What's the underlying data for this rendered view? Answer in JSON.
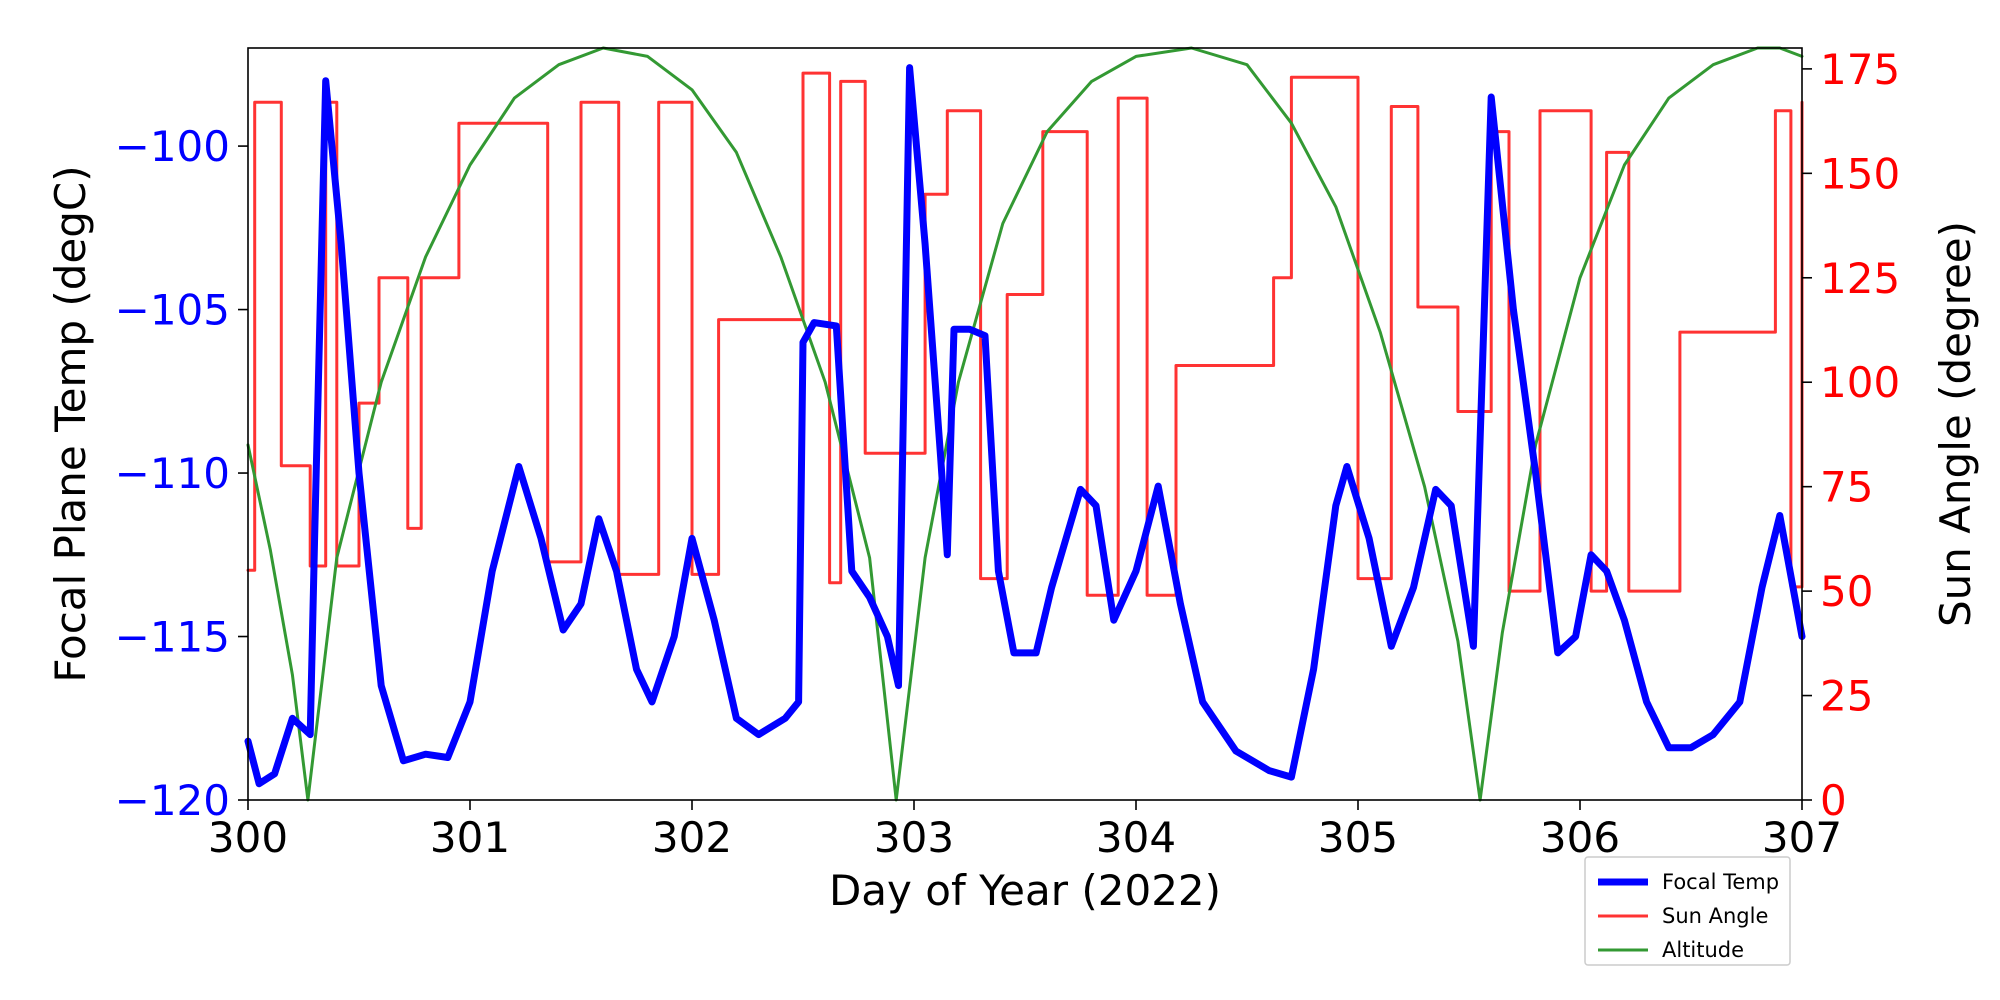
{
  "chart_data": {
    "type": "line",
    "xlabel": "Day of Year (2022)",
    "ylabel_left": "Focal Plane Temp (degC)",
    "ylabel_right": "Sun Angle (degree)",
    "xlim": [
      300,
      307
    ],
    "ylim_left": [
      -120,
      -97
    ],
    "ylim_right": [
      0,
      180
    ],
    "x_ticks": [
      300,
      301,
      302,
      303,
      304,
      305,
      306,
      307
    ],
    "x_tick_labels": [
      "300",
      "301",
      "302",
      "303",
      "304",
      "305",
      "306",
      "307"
    ],
    "y_left_ticks": [
      -100,
      -105,
      -110,
      -115,
      -120
    ],
    "y_left_tick_labels": [
      "−100",
      "−105",
      "−110",
      "−115",
      "−120"
    ],
    "y_right_ticks": [
      175,
      150,
      125,
      100,
      75,
      50,
      25,
      0
    ],
    "y_right_tick_labels": [
      "175",
      "150",
      "125",
      "100",
      "75",
      "50",
      "25",
      "0"
    ],
    "colors": {
      "focal": "#0000ff",
      "sun": "#ff3333",
      "altitude": "#339933",
      "left_tick_color": "#0000ff",
      "right_tick_color": "#ff0000"
    },
    "legend_position": "lower-right outside",
    "series": [
      {
        "name": "Focal Temp",
        "axis": "left",
        "x": [
          300.0,
          300.05,
          300.12,
          300.2,
          300.28,
          300.3,
          300.35,
          300.42,
          300.5,
          300.6,
          300.7,
          300.8,
          300.9,
          301.0,
          301.1,
          301.22,
          301.32,
          301.42,
          301.5,
          301.58,
          301.66,
          301.75,
          301.82,
          301.92,
          302.0,
          302.1,
          302.2,
          302.3,
          302.42,
          302.48,
          302.5,
          302.55,
          302.65,
          302.72,
          302.8,
          302.88,
          302.93,
          302.98,
          303.05,
          303.12,
          303.15,
          303.18,
          303.25,
          303.32,
          303.38,
          303.45,
          303.55,
          303.62,
          303.75,
          303.82,
          303.9,
          304.0,
          304.1,
          304.2,
          304.3,
          304.45,
          304.6,
          304.7,
          304.8,
          304.9,
          304.95,
          305.05,
          305.15,
          305.25,
          305.35,
          305.42,
          305.52,
          305.6,
          305.7,
          305.8,
          305.9,
          305.98,
          306.05,
          306.12,
          306.2,
          306.3,
          306.4,
          306.5,
          306.6,
          306.72,
          306.82,
          306.9,
          307.0
        ],
        "values": [
          -118.2,
          -119.5,
          -119.2,
          -117.5,
          -118.0,
          -112.0,
          -98.0,
          -103.0,
          -110.0,
          -116.5,
          -118.8,
          -118.6,
          -118.7,
          -117.0,
          -113.0,
          -109.8,
          -112.0,
          -114.8,
          -114.0,
          -111.4,
          -113.0,
          -116.0,
          -117.0,
          -115.0,
          -112.0,
          -114.5,
          -117.5,
          -118.0,
          -117.5,
          -117.0,
          -106.0,
          -105.4,
          -105.5,
          -113.0,
          -113.8,
          -115.0,
          -116.5,
          -97.6,
          -103.0,
          -109.5,
          -112.5,
          -105.6,
          -105.6,
          -105.8,
          -113.0,
          -115.5,
          -115.5,
          -113.5,
          -110.5,
          -111.0,
          -114.5,
          -113.0,
          -110.4,
          -114.0,
          -117.0,
          -118.5,
          -119.1,
          -119.3,
          -116.0,
          -111.0,
          -109.8,
          -112.0,
          -115.3,
          -113.5,
          -110.5,
          -111.0,
          -115.3,
          -98.5,
          -105.0,
          -110.0,
          -115.5,
          -115.0,
          -112.5,
          -113.0,
          -114.5,
          -117.0,
          -118.4,
          -118.4,
          -118.0,
          -117.0,
          -113.5,
          -111.3,
          -115.0
        ]
      },
      {
        "name": "Sun Angle",
        "axis": "right",
        "step": true,
        "x": [
          300.0,
          300.03,
          300.15,
          300.28,
          300.35,
          300.4,
          300.5,
          300.59,
          300.72,
          300.78,
          300.88,
          300.95,
          301.2,
          301.35,
          301.5,
          301.67,
          301.85,
          302.0,
          302.12,
          302.45,
          302.5,
          302.62,
          302.67,
          302.78,
          302.85,
          303.05,
          303.15,
          303.3,
          303.42,
          303.58,
          303.78,
          303.92,
          304.05,
          304.18,
          304.38,
          304.58,
          304.62,
          304.7,
          305.0,
          305.15,
          305.27,
          305.32,
          305.45,
          305.55,
          305.6,
          305.68,
          305.77,
          305.82,
          306.05,
          306.12,
          306.22,
          306.35,
          306.45,
          306.55,
          306.65,
          306.88,
          306.95,
          307.0
        ],
        "values": [
          55,
          167,
          80,
          56,
          167,
          56,
          95,
          125,
          65,
          125,
          125,
          162,
          162,
          57,
          167,
          54,
          167,
          54,
          115,
          115,
          174,
          52,
          172,
          83,
          83,
          145,
          165,
          53,
          121,
          160,
          49,
          168,
          49,
          104,
          104,
          104,
          125,
          173,
          53,
          166,
          118,
          118,
          93,
          93,
          160,
          50,
          50,
          165,
          50,
          155,
          50,
          50,
          112,
          112,
          112,
          165,
          51,
          167
        ]
      },
      {
        "name": "Altitude",
        "axis": "right",
        "x": [
          300.0,
          300.1,
          300.2,
          300.27,
          300.4,
          300.6,
          300.8,
          301.0,
          301.2,
          301.4,
          301.6,
          301.8,
          302.0,
          302.2,
          302.4,
          302.6,
          302.8,
          302.92,
          303.05,
          303.2,
          303.4,
          303.6,
          303.8,
          304.0,
          304.25,
          304.5,
          304.7,
          304.9,
          305.1,
          305.3,
          305.45,
          305.55,
          305.65,
          305.8,
          306.0,
          306.2,
          306.4,
          306.6,
          306.8,
          306.9,
          307.0
        ],
        "values": [
          85,
          60,
          30,
          0,
          58,
          100,
          130,
          152,
          168,
          176,
          180,
          178,
          170,
          155,
          130,
          100,
          58,
          0,
          58,
          100,
          138,
          160,
          172,
          178,
          180,
          176,
          162,
          142,
          112,
          75,
          38,
          0,
          40,
          85,
          125,
          152,
          168,
          176,
          180,
          180,
          178
        ]
      }
    ]
  }
}
